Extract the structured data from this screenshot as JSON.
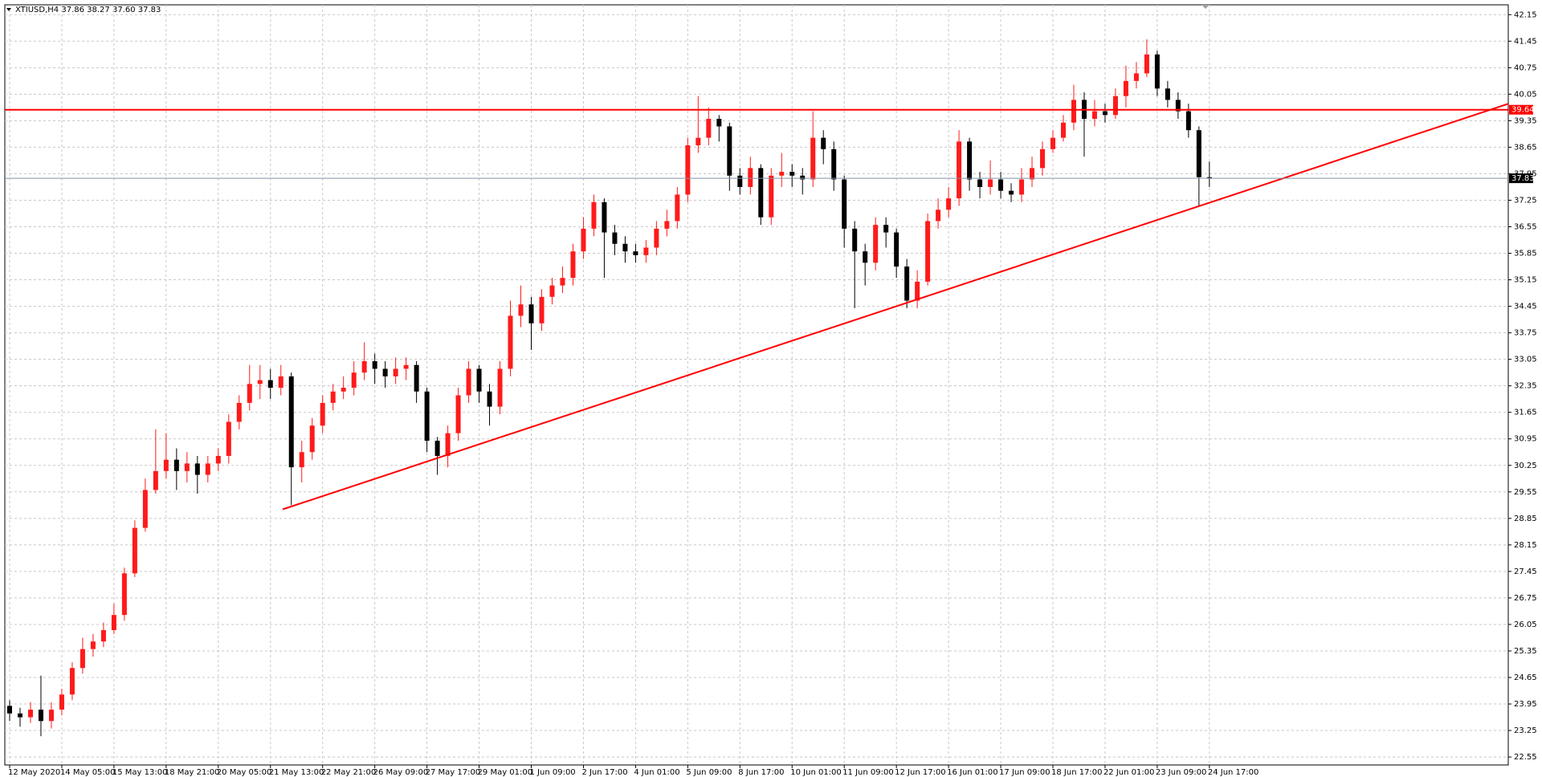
{
  "chart_data": {
    "type": "candlestick",
    "header": "XTIUSD,H4  37.86 38.27 37.60 37.83",
    "categories": [
      "12 May 2020",
      null,
      null,
      null,
      null,
      "14 May 05:00",
      null,
      null,
      null,
      null,
      "15 May 13:00",
      null,
      null,
      null,
      null,
      "18 May 21:00",
      null,
      null,
      null,
      null,
      "20 May 05:00",
      null,
      null,
      null,
      null,
      "21 May 13:00",
      null,
      null,
      null,
      null,
      "22 May 21:00",
      null,
      null,
      null,
      null,
      "26 May 09:00",
      null,
      null,
      null,
      null,
      "27 May 17:00",
      null,
      null,
      null,
      null,
      "29 May 01:00",
      null,
      null,
      null,
      null,
      "1 Jun 09:00",
      null,
      null,
      null,
      null,
      "2 Jun 17:00",
      null,
      null,
      null,
      null,
      "4 Jun 01:00",
      null,
      null,
      null,
      null,
      "5 Jun 09:00",
      null,
      null,
      null,
      null,
      "8 Jun 17:00",
      null,
      null,
      null,
      null,
      "10 Jun 01:00",
      null,
      null,
      null,
      null,
      "11 Jun 09:00",
      null,
      null,
      null,
      null,
      "12 Jun 17:00",
      null,
      null,
      null,
      null,
      "16 Jun 01:00",
      null,
      null,
      null,
      null,
      "17 Jun 09:00",
      null,
      null,
      null,
      null,
      "18 Jun 17:00",
      null,
      null,
      null,
      null,
      "22 Jun 01:00",
      null,
      null,
      null,
      null,
      "23 Jun 09:00",
      null,
      null,
      null,
      null,
      "24 Jun 17:00"
    ],
    "candles": [
      [
        23.9,
        24.05,
        23.5,
        23.7
      ],
      [
        23.7,
        23.85,
        23.35,
        23.6
      ],
      [
        23.6,
        24.0,
        23.45,
        23.8
      ],
      [
        23.8,
        24.7,
        23.1,
        23.5
      ],
      [
        23.5,
        24.0,
        23.3,
        23.8
      ],
      [
        23.8,
        24.35,
        23.65,
        24.2
      ],
      [
        24.2,
        25.05,
        24.05,
        24.9
      ],
      [
        24.9,
        25.7,
        24.75,
        25.4
      ],
      [
        25.4,
        25.8,
        25.2,
        25.6
      ],
      [
        25.6,
        26.1,
        25.45,
        25.9
      ],
      [
        25.9,
        26.6,
        25.8,
        26.3
      ],
      [
        26.3,
        27.55,
        26.15,
        27.4
      ],
      [
        27.4,
        28.8,
        27.3,
        28.6
      ],
      [
        28.6,
        29.9,
        28.5,
        29.6
      ],
      [
        29.6,
        31.2,
        29.5,
        30.1
      ],
      [
        30.1,
        31.1,
        29.9,
        30.4
      ],
      [
        30.4,
        30.7,
        29.6,
        30.1
      ],
      [
        30.1,
        30.6,
        29.8,
        30.3
      ],
      [
        30.3,
        30.5,
        29.5,
        30.0
      ],
      [
        30.0,
        30.5,
        29.8,
        30.3
      ],
      [
        30.3,
        30.7,
        30.1,
        30.5
      ],
      [
        30.5,
        31.6,
        30.3,
        31.4
      ],
      [
        31.4,
        32.1,
        31.2,
        31.9
      ],
      [
        31.9,
        32.9,
        31.7,
        32.4
      ],
      [
        32.4,
        32.9,
        32.0,
        32.5
      ],
      [
        32.5,
        32.8,
        32.0,
        32.3
      ],
      [
        32.3,
        32.9,
        32.1,
        32.6
      ],
      [
        32.6,
        32.7,
        29.2,
        30.2
      ],
      [
        30.2,
        30.9,
        29.8,
        30.6
      ],
      [
        30.6,
        31.5,
        30.4,
        31.3
      ],
      [
        31.3,
        32.1,
        31.1,
        31.9
      ],
      [
        31.9,
        32.4,
        31.7,
        32.2
      ],
      [
        32.2,
        32.6,
        32.0,
        32.3
      ],
      [
        32.3,
        33.0,
        32.1,
        32.7
      ],
      [
        32.7,
        33.5,
        32.5,
        33.0
      ],
      [
        33.0,
        33.2,
        32.4,
        32.8
      ],
      [
        32.8,
        33.0,
        32.3,
        32.6
      ],
      [
        32.6,
        33.1,
        32.4,
        32.8
      ],
      [
        32.8,
        33.1,
        32.5,
        32.9
      ],
      [
        32.9,
        33.0,
        31.9,
        32.2
      ],
      [
        32.2,
        32.3,
        30.6,
        30.9
      ],
      [
        30.9,
        31.0,
        30.0,
        30.5
      ],
      [
        30.5,
        31.3,
        30.2,
        31.1
      ],
      [
        31.1,
        32.3,
        30.9,
        32.1
      ],
      [
        32.1,
        33.0,
        31.9,
        32.8
      ],
      [
        32.8,
        32.9,
        31.9,
        32.2
      ],
      [
        32.2,
        32.4,
        31.3,
        31.8
      ],
      [
        31.8,
        33.0,
        31.6,
        32.8
      ],
      [
        32.8,
        34.6,
        32.6,
        34.2
      ],
      [
        34.2,
        35.0,
        33.9,
        34.5
      ],
      [
        34.5,
        34.7,
        33.3,
        34.0
      ],
      [
        34.0,
        34.9,
        33.8,
        34.7
      ],
      [
        34.7,
        35.2,
        34.5,
        35.0
      ],
      [
        35.0,
        35.5,
        34.8,
        35.2
      ],
      [
        35.2,
        36.1,
        35.0,
        35.9
      ],
      [
        35.9,
        36.8,
        35.7,
        36.5
      ],
      [
        36.5,
        37.4,
        36.3,
        37.2
      ],
      [
        37.2,
        37.3,
        35.2,
        36.4
      ],
      [
        36.4,
        36.6,
        35.8,
        36.1
      ],
      [
        36.1,
        36.3,
        35.6,
        35.9
      ],
      [
        35.9,
        36.1,
        35.6,
        35.8
      ],
      [
        35.8,
        36.2,
        35.6,
        36.0
      ],
      [
        36.0,
        36.7,
        35.8,
        36.5
      ],
      [
        36.5,
        37.0,
        36.3,
        36.7
      ],
      [
        36.7,
        37.6,
        36.5,
        37.4
      ],
      [
        37.4,
        38.9,
        37.2,
        38.7
      ],
      [
        38.7,
        40.0,
        38.5,
        38.9
      ],
      [
        38.9,
        39.7,
        38.7,
        39.4
      ],
      [
        39.4,
        39.5,
        38.8,
        39.2
      ],
      [
        39.2,
        39.3,
        37.5,
        37.9
      ],
      [
        37.9,
        38.1,
        37.4,
        37.6
      ],
      [
        37.6,
        38.4,
        37.4,
        38.1
      ],
      [
        38.1,
        38.2,
        36.6,
        36.8
      ],
      [
        36.8,
        38.1,
        36.6,
        37.9
      ],
      [
        37.9,
        38.5,
        37.6,
        38.0
      ],
      [
        38.0,
        38.2,
        37.6,
        37.9
      ],
      [
        37.9,
        38.1,
        37.4,
        37.8
      ],
      [
        37.8,
        39.6,
        37.6,
        38.9
      ],
      [
        38.9,
        39.1,
        38.2,
        38.6
      ],
      [
        38.6,
        38.8,
        37.5,
        37.8
      ],
      [
        37.8,
        37.9,
        36.0,
        36.5
      ],
      [
        36.5,
        36.7,
        34.4,
        35.9
      ],
      [
        35.9,
        36.1,
        35.0,
        35.6
      ],
      [
        35.6,
        36.8,
        35.4,
        36.6
      ],
      [
        36.6,
        36.8,
        36.0,
        36.4
      ],
      [
        36.4,
        36.5,
        35.2,
        35.5
      ],
      [
        35.5,
        35.7,
        34.4,
        34.6
      ],
      [
        34.6,
        35.4,
        34.4,
        35.1
      ],
      [
        35.1,
        36.9,
        35.0,
        36.7
      ],
      [
        36.7,
        37.3,
        36.5,
        37.0
      ],
      [
        37.0,
        37.6,
        36.8,
        37.3
      ],
      [
        37.3,
        39.1,
        37.1,
        38.8
      ],
      [
        38.8,
        38.9,
        37.5,
        37.8
      ],
      [
        37.8,
        38.0,
        37.3,
        37.6
      ],
      [
        37.6,
        38.3,
        37.4,
        37.8
      ],
      [
        37.8,
        38.0,
        37.3,
        37.5
      ],
      [
        37.5,
        37.7,
        37.2,
        37.4
      ],
      [
        37.4,
        38.1,
        37.2,
        37.8
      ],
      [
        37.8,
        38.4,
        37.6,
        38.1
      ],
      [
        38.1,
        38.8,
        37.9,
        38.6
      ],
      [
        38.6,
        39.1,
        38.5,
        38.9
      ],
      [
        38.9,
        39.5,
        38.8,
        39.3
      ],
      [
        39.3,
        40.3,
        39.1,
        39.9
      ],
      [
        39.9,
        40.1,
        38.4,
        39.4
      ],
      [
        39.4,
        39.9,
        39.2,
        39.6
      ],
      [
        39.6,
        39.8,
        39.3,
        39.5
      ],
      [
        39.5,
        40.2,
        39.4,
        40.0
      ],
      [
        40.0,
        40.8,
        39.7,
        40.4
      ],
      [
        40.4,
        40.9,
        40.2,
        40.6
      ],
      [
        40.6,
        41.5,
        40.5,
        41.1
      ],
      [
        41.1,
        41.2,
        40.0,
        40.2
      ],
      [
        40.2,
        40.4,
        39.7,
        39.9
      ],
      [
        39.9,
        40.1,
        39.4,
        39.6
      ],
      [
        39.6,
        39.8,
        38.9,
        39.1
      ],
      [
        39.1,
        39.2,
        37.1,
        37.86
      ],
      [
        37.86,
        38.27,
        37.6,
        37.83
      ]
    ],
    "up_color": "#ff1a1a",
    "down_color": "#000000",
    "ylim": [
      22.34,
      42.41
    ],
    "yticks": [
      22.55,
      23.25,
      23.95,
      24.65,
      25.35,
      26.05,
      26.75,
      27.45,
      28.15,
      28.85,
      29.55,
      30.25,
      30.95,
      31.65,
      32.35,
      33.05,
      33.75,
      34.45,
      35.15,
      35.85,
      36.55,
      37.25,
      37.95,
      38.65,
      39.35,
      40.05,
      40.75,
      41.45,
      42.15
    ],
    "grid": true,
    "levels": [
      {
        "value": 39.64,
        "color": "#ff0000"
      },
      {
        "value": 37.83,
        "color": "#7f93a8"
      }
    ],
    "trendline": {
      "values": [
        29.09,
        39.81
      ],
      "color": "#ff0000"
    }
  }
}
